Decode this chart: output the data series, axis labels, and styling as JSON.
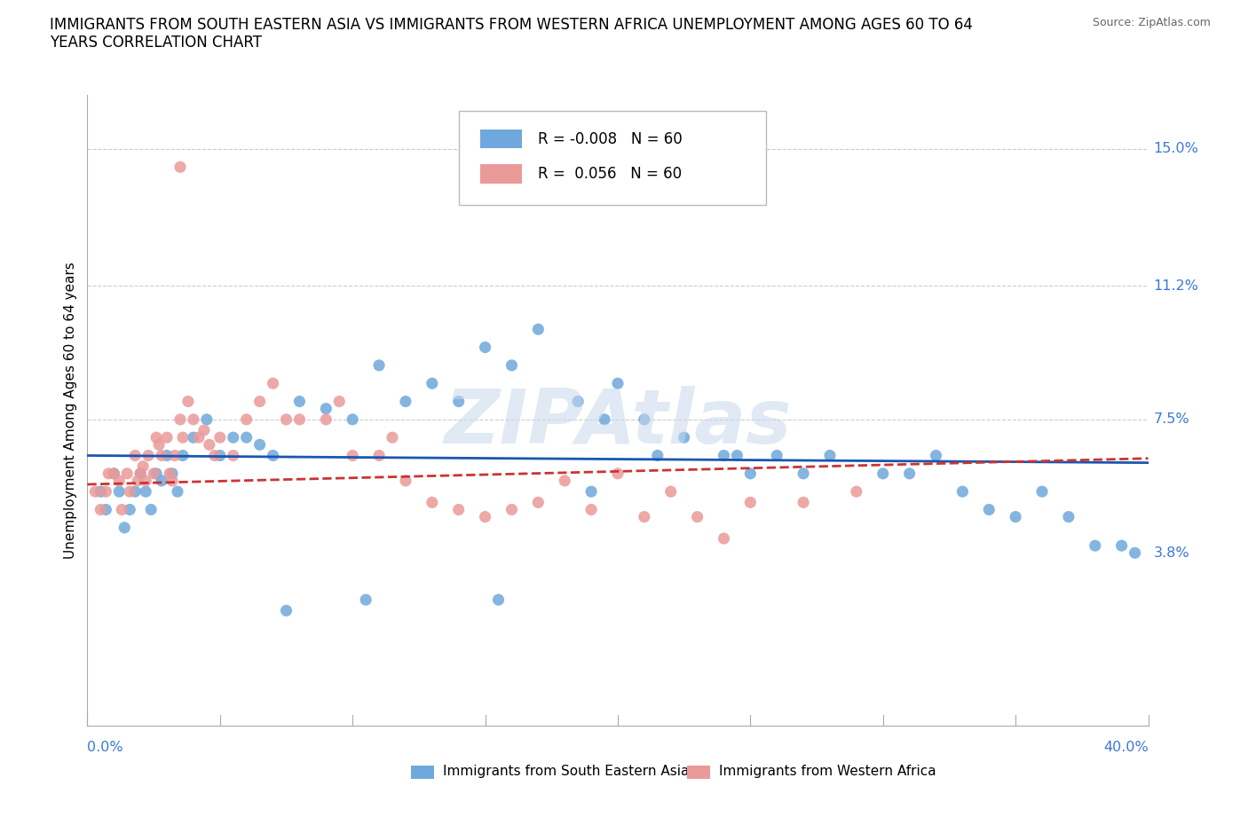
{
  "title_line1": "IMMIGRANTS FROM SOUTH EASTERN ASIA VS IMMIGRANTS FROM WESTERN AFRICA UNEMPLOYMENT AMONG AGES 60 TO 64",
  "title_line2": "YEARS CORRELATION CHART",
  "source": "Source: ZipAtlas.com",
  "ylabel": "Unemployment Among Ages 60 to 64 years",
  "xlim": [
    0.0,
    0.4
  ],
  "ylim": [
    -0.01,
    0.165
  ],
  "ytick_positions": [
    0.038,
    0.075,
    0.112,
    0.15
  ],
  "ytick_labels": [
    "3.8%",
    "7.5%",
    "11.2%",
    "15.0%"
  ],
  "xtick_left_label": "0.0%",
  "xtick_right_label": "40.0%",
  "legend_r_blue": "-0.008",
  "legend_n_blue": "60",
  "legend_r_pink": "0.056",
  "legend_n_pink": "60",
  "blue_scatter_color": "#6fa8dc",
  "pink_scatter_color": "#ea9999",
  "blue_line_color": "#1a56b0",
  "pink_line_color": "#cc3333",
  "grid_color": "#cccccc",
  "watermark_text": "ZIPAtlas",
  "blue_x": [
    0.005,
    0.007,
    0.01,
    0.012,
    0.014,
    0.016,
    0.018,
    0.02,
    0.022,
    0.024,
    0.026,
    0.028,
    0.03,
    0.032,
    0.034,
    0.036,
    0.04,
    0.045,
    0.05,
    0.055,
    0.06,
    0.065,
    0.07,
    0.08,
    0.09,
    0.1,
    0.11,
    0.12,
    0.13,
    0.14,
    0.15,
    0.16,
    0.17,
    0.185,
    0.195,
    0.2,
    0.21,
    0.215,
    0.225,
    0.24,
    0.25,
    0.26,
    0.27,
    0.28,
    0.3,
    0.31,
    0.32,
    0.33,
    0.34,
    0.35,
    0.36,
    0.37,
    0.38,
    0.39,
    0.395,
    0.245,
    0.19,
    0.155,
    0.105,
    0.075
  ],
  "blue_y": [
    0.055,
    0.05,
    0.06,
    0.055,
    0.045,
    0.05,
    0.055,
    0.06,
    0.055,
    0.05,
    0.06,
    0.058,
    0.065,
    0.06,
    0.055,
    0.065,
    0.07,
    0.075,
    0.065,
    0.07,
    0.07,
    0.068,
    0.065,
    0.08,
    0.078,
    0.075,
    0.09,
    0.08,
    0.085,
    0.08,
    0.095,
    0.09,
    0.1,
    0.08,
    0.075,
    0.085,
    0.075,
    0.065,
    0.07,
    0.065,
    0.06,
    0.065,
    0.06,
    0.065,
    0.06,
    0.06,
    0.065,
    0.055,
    0.05,
    0.048,
    0.055,
    0.048,
    0.04,
    0.04,
    0.038,
    0.065,
    0.055,
    0.025,
    0.025,
    0.022
  ],
  "pink_x": [
    0.003,
    0.005,
    0.007,
    0.008,
    0.01,
    0.012,
    0.013,
    0.015,
    0.016,
    0.018,
    0.019,
    0.02,
    0.021,
    0.022,
    0.023,
    0.025,
    0.026,
    0.027,
    0.028,
    0.03,
    0.031,
    0.032,
    0.033,
    0.035,
    0.036,
    0.038,
    0.04,
    0.042,
    0.044,
    0.046,
    0.048,
    0.05,
    0.055,
    0.06,
    0.065,
    0.07,
    0.075,
    0.08,
    0.09,
    0.095,
    0.1,
    0.11,
    0.115,
    0.12,
    0.13,
    0.14,
    0.15,
    0.16,
    0.17,
    0.18,
    0.19,
    0.2,
    0.21,
    0.22,
    0.23,
    0.24,
    0.25,
    0.27,
    0.29,
    0.035
  ],
  "pink_y": [
    0.055,
    0.05,
    0.055,
    0.06,
    0.06,
    0.058,
    0.05,
    0.06,
    0.055,
    0.065,
    0.058,
    0.06,
    0.062,
    0.058,
    0.065,
    0.06,
    0.07,
    0.068,
    0.065,
    0.07,
    0.06,
    0.058,
    0.065,
    0.075,
    0.07,
    0.08,
    0.075,
    0.07,
    0.072,
    0.068,
    0.065,
    0.07,
    0.065,
    0.075,
    0.08,
    0.085,
    0.075,
    0.075,
    0.075,
    0.08,
    0.065,
    0.065,
    0.07,
    0.058,
    0.052,
    0.05,
    0.048,
    0.05,
    0.052,
    0.058,
    0.05,
    0.06,
    0.048,
    0.055,
    0.048,
    0.042,
    0.052,
    0.052,
    0.055,
    0.145
  ]
}
